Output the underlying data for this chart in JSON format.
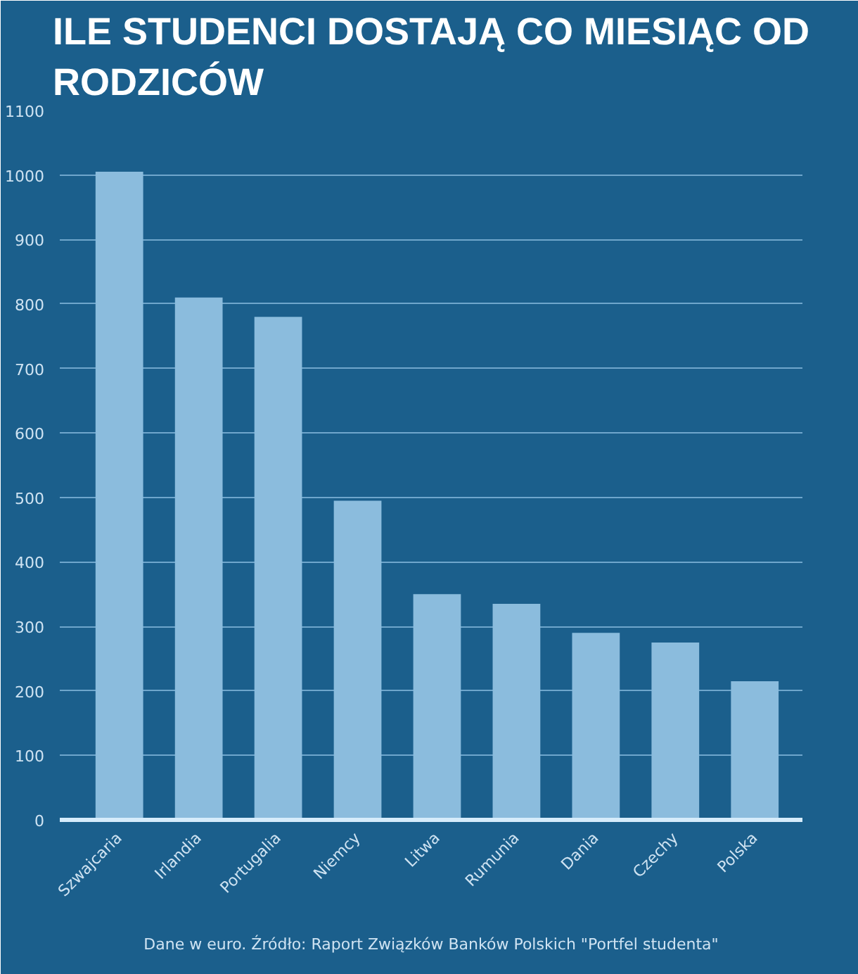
{
  "chart_data": {
    "type": "bar",
    "title": "ILE STUDENCI DOSTAJĄ CO MIESIĄC OD RODZICÓW",
    "categories": [
      "Szwajcaria",
      "Irlandia",
      "Portugalia",
      "Niemcy",
      "Litwa",
      "Rumunia",
      "Dania",
      "Czechy",
      "Polska"
    ],
    "values": [
      1005,
      810,
      780,
      495,
      350,
      335,
      290,
      275,
      215
    ],
    "color": "#8bbcdd",
    "ylim": [
      0,
      1100
    ],
    "yticks": [
      0,
      100,
      200,
      300,
      400,
      500,
      600,
      700,
      800,
      900,
      1000,
      1100
    ],
    "grid": "y",
    "annotations": [
      "Dane w euro. Źródło: Raport Związków Banków Polskich \"Portfel studenta\""
    ]
  }
}
